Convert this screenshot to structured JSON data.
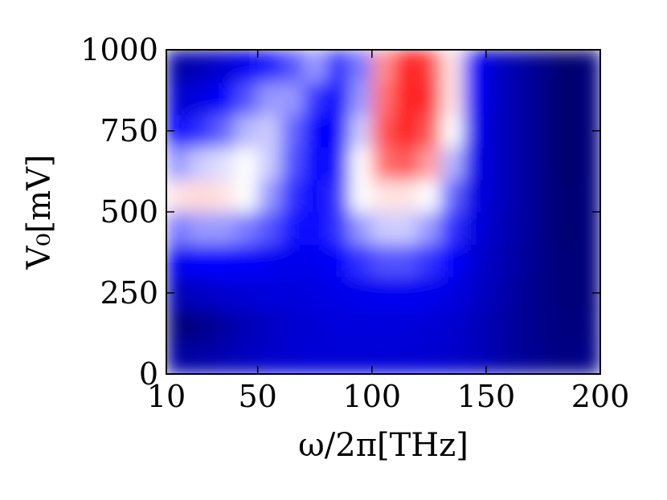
{
  "chart_data": {
    "type": "heatmap",
    "xlabel": "ω/2π[THz]",
    "ylabel": "V₀[mV]",
    "x": [
      15,
      25,
      35,
      45,
      55,
      65,
      75,
      85,
      95,
      105,
      115,
      125,
      135,
      145,
      155,
      165,
      175,
      185,
      195
    ],
    "y": [
      50,
      150,
      250,
      350,
      450,
      550,
      650,
      750,
      850,
      950
    ],
    "z": [
      [
        0.14,
        0.15,
        0.17,
        0.19,
        0.21,
        0.22,
        0.23,
        0.23,
        0.23,
        0.23,
        0.23,
        0.22,
        0.21,
        0.19,
        0.16,
        0.13,
        0.11,
        0.09,
        0.1
      ],
      [
        0.08,
        0.1,
        0.14,
        0.18,
        0.2,
        0.22,
        0.23,
        0.24,
        0.24,
        0.24,
        0.24,
        0.23,
        0.22,
        0.19,
        0.16,
        0.13,
        0.1,
        0.08,
        0.09
      ],
      [
        0.18,
        0.2,
        0.22,
        0.23,
        0.24,
        0.24,
        0.25,
        0.26,
        0.27,
        0.28,
        0.28,
        0.27,
        0.25,
        0.21,
        0.17,
        0.13,
        0.1,
        0.07,
        0.08
      ],
      [
        0.28,
        0.3,
        0.3,
        0.3,
        0.28,
        0.27,
        0.27,
        0.3,
        0.35,
        0.38,
        0.38,
        0.35,
        0.3,
        0.23,
        0.18,
        0.14,
        0.1,
        0.07,
        0.08
      ],
      [
        0.42,
        0.45,
        0.45,
        0.42,
        0.38,
        0.32,
        0.3,
        0.35,
        0.45,
        0.5,
        0.5,
        0.45,
        0.35,
        0.25,
        0.19,
        0.15,
        0.1,
        0.06,
        0.08
      ],
      [
        0.6,
        0.62,
        0.6,
        0.55,
        0.45,
        0.35,
        0.3,
        0.35,
        0.55,
        0.6,
        0.6,
        0.55,
        0.4,
        0.26,
        0.2,
        0.15,
        0.1,
        0.06,
        0.08
      ],
      [
        0.45,
        0.5,
        0.52,
        0.55,
        0.5,
        0.38,
        0.3,
        0.32,
        0.55,
        0.8,
        0.85,
        0.72,
        0.48,
        0.27,
        0.2,
        0.15,
        0.1,
        0.05,
        0.08
      ],
      [
        0.3,
        0.35,
        0.4,
        0.48,
        0.5,
        0.4,
        0.3,
        0.3,
        0.5,
        0.85,
        0.95,
        0.85,
        0.55,
        0.28,
        0.2,
        0.15,
        0.1,
        0.05,
        0.08
      ],
      [
        0.22,
        0.25,
        0.3,
        0.38,
        0.45,
        0.45,
        0.35,
        0.3,
        0.45,
        0.8,
        0.98,
        0.92,
        0.6,
        0.3,
        0.2,
        0.15,
        0.1,
        0.05,
        0.08
      ],
      [
        0.15,
        0.18,
        0.22,
        0.28,
        0.33,
        0.38,
        0.45,
        0.35,
        0.42,
        0.75,
        0.95,
        0.9,
        0.6,
        0.3,
        0.2,
        0.15,
        0.1,
        0.05,
        0.08
      ]
    ],
    "xlim": [
      10,
      200
    ],
    "xticks": [
      10,
      50,
      100,
      150,
      200
    ],
    "ylim": [
      0,
      1000
    ],
    "yticks": [
      0,
      250,
      500,
      750,
      1000
    ]
  }
}
